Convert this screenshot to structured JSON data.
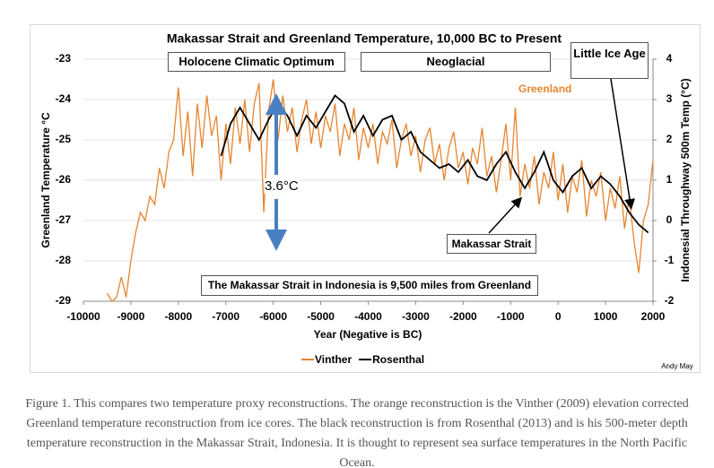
{
  "chart_data": {
    "type": "line",
    "title": "Makassar Strait and Greenland Temperature, 10,000 BC to Present",
    "x_label": "Year (Negative is BC)",
    "y_label": "Greenland Temperature °C",
    "y2_label": "Indonesial Throughway 500m Temp (°C)",
    "xlim": [
      -10000,
      2000
    ],
    "xticks": [
      -10000,
      -9000,
      -8000,
      -7000,
      -6000,
      -5000,
      -4000,
      -3000,
      -2000,
      -1000,
      0,
      1000,
      2000
    ],
    "ylim": [
      -29,
      -23
    ],
    "yticks": [
      -23,
      -24,
      -25,
      -26,
      -27,
      -28,
      -29
    ],
    "y2lim": [
      -2,
      4
    ],
    "y2ticks": [
      4,
      3,
      2,
      1,
      0,
      -1,
      -2
    ],
    "grid": true,
    "legend": "bottom",
    "series": [
      {
        "name": "Vinther",
        "color": "#e6852f",
        "axis": "y",
        "x": [
          -9500,
          -9400,
          -9300,
          -9200,
          -9100,
          -9000,
          -8900,
          -8800,
          -8700,
          -8600,
          -8500,
          -8400,
          -8300,
          -8200,
          -8100,
          -8000,
          -7900,
          -7800,
          -7700,
          -7600,
          -7500,
          -7400,
          -7300,
          -7200,
          -7100,
          -7000,
          -6900,
          -6800,
          -6700,
          -6600,
          -6500,
          -6400,
          -6300,
          -6200,
          -6100,
          -6000,
          -5900,
          -5800,
          -5700,
          -5600,
          -5500,
          -5400,
          -5300,
          -5200,
          -5100,
          -5000,
          -4900,
          -4800,
          -4700,
          -4600,
          -4500,
          -4400,
          -4300,
          -4200,
          -4100,
          -4000,
          -3900,
          -3800,
          -3700,
          -3600,
          -3500,
          -3400,
          -3300,
          -3200,
          -3100,
          -3000,
          -2900,
          -2800,
          -2700,
          -2600,
          -2500,
          -2400,
          -2300,
          -2200,
          -2100,
          -2000,
          -1900,
          -1800,
          -1700,
          -1600,
          -1500,
          -1400,
          -1300,
          -1200,
          -1100,
          -1000,
          -900,
          -800,
          -700,
          -600,
          -500,
          -400,
          -300,
          -200,
          -100,
          0,
          100,
          200,
          300,
          400,
          500,
          600,
          700,
          800,
          900,
          1000,
          1100,
          1200,
          1300,
          1400,
          1500,
          1600,
          1700,
          1800,
          1900,
          2000
        ],
        "values": [
          -28.8,
          -29.0,
          -28.9,
          -28.4,
          -28.9,
          -28.0,
          -27.3,
          -26.8,
          -27.0,
          -26.4,
          -26.6,
          -25.7,
          -26.2,
          -25.3,
          -25.0,
          -23.7,
          -25.4,
          -24.3,
          -25.9,
          -24.1,
          -25.2,
          -23.9,
          -24.9,
          -24.4,
          -26.0,
          -24.6,
          -25.6,
          -24.2,
          -25.1,
          -24.0,
          -25.3,
          -24.1,
          -23.6,
          -26.8,
          -24.3,
          -23.5,
          -25.0,
          -23.9,
          -24.8,
          -24.2,
          -25.3,
          -24.5,
          -24.0,
          -25.1,
          -24.3,
          -25.2,
          -24.4,
          -24.8,
          -24.1,
          -25.4,
          -24.6,
          -25.0,
          -24.2,
          -25.5,
          -24.7,
          -25.2,
          -24.6,
          -25.6,
          -24.8,
          -25.1,
          -24.5,
          -25.7,
          -25.0,
          -24.6,
          -25.4,
          -24.9,
          -25.8,
          -25.0,
          -24.7,
          -25.6,
          -25.1,
          -26.0,
          -25.2,
          -24.8,
          -25.7,
          -25.3,
          -26.1,
          -25.2,
          -25.6,
          -24.7,
          -25.9,
          -25.4,
          -26.3,
          -25.5,
          -24.6,
          -26.0,
          -24.2,
          -26.4,
          -25.6,
          -26.2,
          -25.4,
          -26.6,
          -25.8,
          -26.2,
          -25.3,
          -26.5,
          -25.6,
          -26.8,
          -25.9,
          -26.3,
          -25.5,
          -26.9,
          -26.0,
          -26.4,
          -25.8,
          -27.0,
          -26.2,
          -26.7,
          -25.9,
          -27.2,
          -26.4,
          -27.5,
          -28.3,
          -27.0,
          -26.6,
          -25.5
        ]
      },
      {
        "name": "Rosenthal",
        "color": "#000000",
        "axis": "y2",
        "x": [
          -7100,
          -6900,
          -6700,
          -6500,
          -6300,
          -6100,
          -5900,
          -5700,
          -5500,
          -5300,
          -5100,
          -4900,
          -4700,
          -4500,
          -4300,
          -4100,
          -3900,
          -3700,
          -3500,
          -3300,
          -3100,
          -2900,
          -2700,
          -2500,
          -2300,
          -2100,
          -1900,
          -1700,
          -1500,
          -1300,
          -1100,
          -900,
          -700,
          -500,
          -300,
          -100,
          100,
          300,
          500,
          700,
          900,
          1100,
          1300,
          1500,
          1700,
          1900
        ],
        "values": [
          1.6,
          2.4,
          2.8,
          2.4,
          2.0,
          2.5,
          2.9,
          2.6,
          2.1,
          2.6,
          2.3,
          2.7,
          3.1,
          2.9,
          2.2,
          2.6,
          2.1,
          2.5,
          2.6,
          2.0,
          2.2,
          1.7,
          1.5,
          1.3,
          1.4,
          1.2,
          1.5,
          1.1,
          1.0,
          1.4,
          1.7,
          1.2,
          0.8,
          1.2,
          1.7,
          1.0,
          0.7,
          1.1,
          1.3,
          0.8,
          1.1,
          0.9,
          0.6,
          0.2,
          -0.1,
          -0.3
        ]
      }
    ],
    "annotations": [
      "Holocene Climatic Optimum",
      "Neoglacial",
      "Little Ice Age",
      "Greenland",
      "3.6°C",
      "Makassar Strait",
      "The Makassar Strait in Indonesia is 9,500 miles from Greenland"
    ],
    "credit": "Andy May"
  },
  "caption": "Figure 1. This compares two temperature proxy reconstructions. The orange reconstruction is the Vinther (2009) elevation corrected Greenland temperature reconstruction from ice cores. The black reconstruction is from Rosenthal (2013) and is his 500-meter depth temperature reconstruction in the Makassar Strait, Indonesia. It is thought to represent sea surface temperatures in the North Pacific Ocean."
}
